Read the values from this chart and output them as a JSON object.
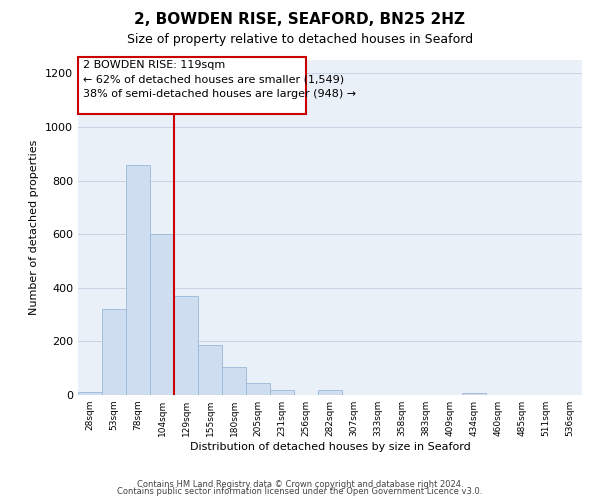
{
  "title": "2, BOWDEN RISE, SEAFORD, BN25 2HZ",
  "subtitle": "Size of property relative to detached houses in Seaford",
  "xlabel": "Distribution of detached houses by size in Seaford",
  "ylabel": "Number of detached properties",
  "bar_labels": [
    "28sqm",
    "53sqm",
    "78sqm",
    "104sqm",
    "129sqm",
    "155sqm",
    "180sqm",
    "205sqm",
    "231sqm",
    "256sqm",
    "282sqm",
    "307sqm",
    "333sqm",
    "358sqm",
    "383sqm",
    "409sqm",
    "434sqm",
    "460sqm",
    "485sqm",
    "511sqm",
    "536sqm"
  ],
  "bar_values": [
    10,
    320,
    860,
    600,
    370,
    185,
    105,
    45,
    20,
    0,
    20,
    0,
    0,
    0,
    0,
    0,
    8,
    0,
    0,
    0,
    0
  ],
  "bar_color": "#cfddf0",
  "bar_edge_color": "#9ab8d8",
  "grid_color": "#c8d4e4",
  "background_color": "#ffffff",
  "plot_bg_color": "#eaf0f8",
  "vline_x": 3.5,
  "vline_color": "#cc0000",
  "annotation_line1": "2 BOWDEN RISE: 119sqm",
  "annotation_line2": "← 62% of detached houses are smaller (1,549)",
  "annotation_line3": "38% of semi-detached houses are larger (948) →",
  "annotation_box_color": "#ffffff",
  "annotation_box_edge": "#cc0000",
  "ylim": [
    0,
    1250
  ],
  "yticks": [
    0,
    200,
    400,
    600,
    800,
    1000,
    1200
  ],
  "footer_line1": "Contains HM Land Registry data © Crown copyright and database right 2024.",
  "footer_line2": "Contains public sector information licensed under the Open Government Licence v3.0."
}
